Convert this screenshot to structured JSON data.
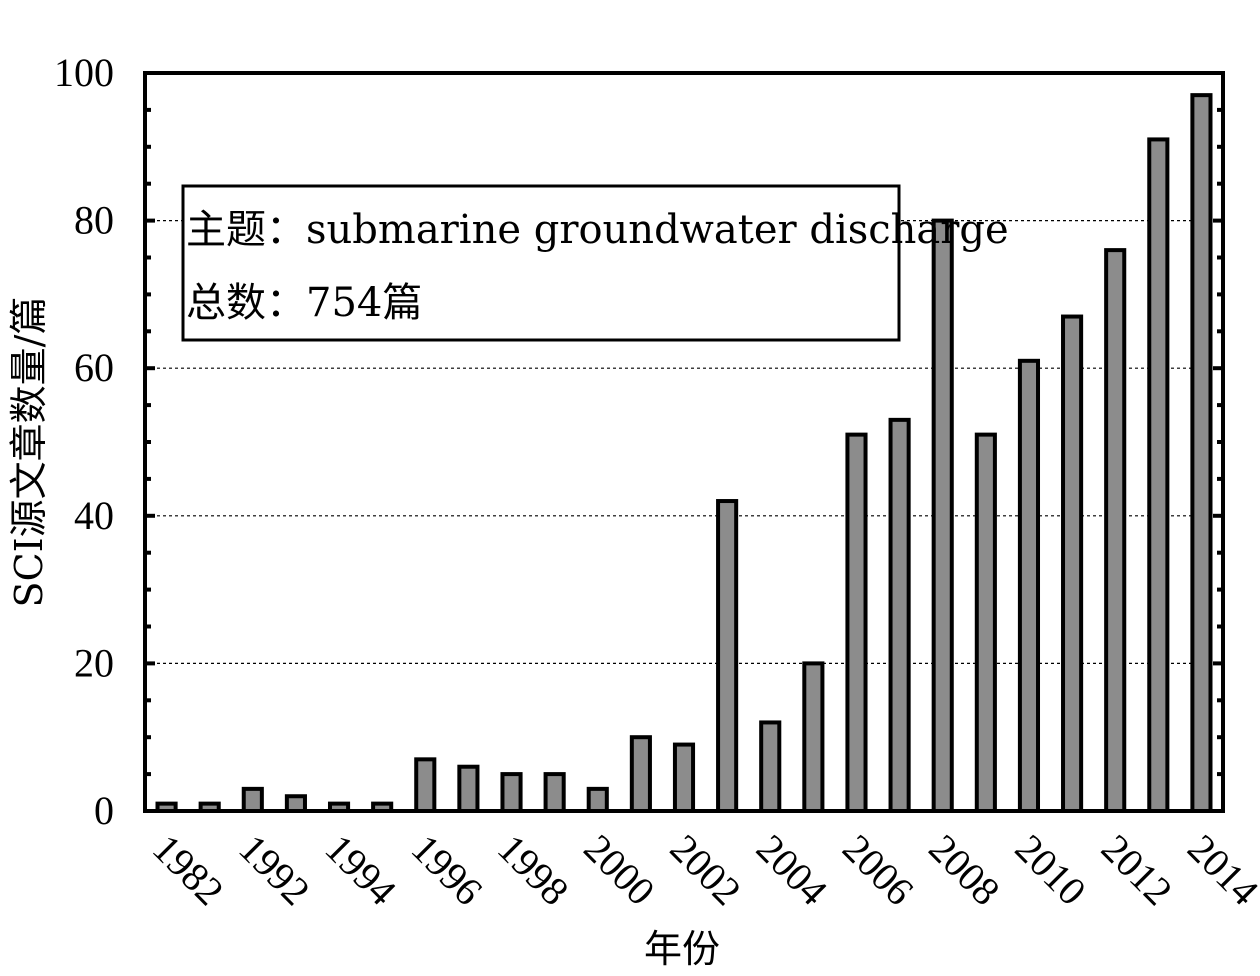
{
  "chart_data": {
    "type": "bar",
    "categories": [
      "1982",
      "1991",
      "1992",
      "1993",
      "1994",
      "1995",
      "1996",
      "1997",
      "1998",
      "1999",
      "2000",
      "2001",
      "2002",
      "2003",
      "2004",
      "2005",
      "2006",
      "2007",
      "2008",
      "2009",
      "2010",
      "2011",
      "2012",
      "2013",
      "2014"
    ],
    "x_tick_labels": [
      "1982",
      "1992",
      "1994",
      "1996",
      "1998",
      "2000",
      "2002",
      "2004",
      "2006",
      "2008",
      "2010",
      "2012",
      "2014"
    ],
    "values": [
      1,
      1,
      3,
      2,
      1,
      1,
      7,
      6,
      5,
      5,
      3,
      10,
      9,
      42,
      12,
      20,
      51,
      53,
      80,
      51,
      61,
      67,
      76,
      91,
      97
    ],
    "xlabel": "年份",
    "ylabel": "SCI源文章数量/篇",
    "ylim": [
      0,
      100
    ],
    "y_ticks": [
      0,
      20,
      40,
      60,
      80,
      100
    ],
    "grid": "horizontal dashed at major ticks",
    "bar_color": "#8c8c8c",
    "legend": {
      "line1": "主题：submarine groundwater discharge",
      "line2": "总数：754篇",
      "placement": "top-left"
    }
  }
}
